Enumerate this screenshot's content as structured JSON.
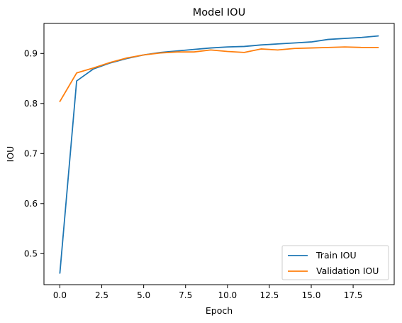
{
  "chart_data": {
    "type": "line",
    "title": "Model IOU",
    "xlabel": "Epoch",
    "ylabel": "IOU",
    "x": [
      0,
      1,
      2,
      3,
      4,
      5,
      6,
      7,
      8,
      9,
      10,
      11,
      12,
      13,
      14,
      15,
      16,
      17,
      18,
      19
    ],
    "series": [
      {
        "name": "Train IOU",
        "color": "#1f77b4",
        "values": [
          0.461,
          0.845,
          0.869,
          0.881,
          0.89,
          0.897,
          0.902,
          0.905,
          0.908,
          0.911,
          0.913,
          0.914,
          0.917,
          0.919,
          0.921,
          0.923,
          0.928,
          0.93,
          0.932,
          0.935
        ]
      },
      {
        "name": "Validation IOU",
        "color": "#ff7f0e",
        "values": [
          0.804,
          0.861,
          0.871,
          0.882,
          0.891,
          0.897,
          0.901,
          0.903,
          0.903,
          0.907,
          0.904,
          0.902,
          0.909,
          0.907,
          0.91,
          0.911,
          0.912,
          0.913,
          0.912,
          0.912
        ]
      }
    ],
    "xlim": [
      -0.95,
      19.95
    ],
    "ylim": [
      0.438,
      0.96
    ],
    "xticks": [
      0,
      2.5,
      5,
      7.5,
      10,
      12.5,
      15,
      17.5
    ],
    "xtick_labels": [
      "0.0",
      "2.5",
      "5.0",
      "7.5",
      "10.0",
      "12.5",
      "15.0",
      "17.5"
    ],
    "yticks": [
      0.5,
      0.6,
      0.7,
      0.8,
      0.9
    ],
    "ytick_labels": [
      "0.5",
      "0.6",
      "0.7",
      "0.8",
      "0.9"
    ],
    "grid": false,
    "legend_position": "lower-right"
  }
}
